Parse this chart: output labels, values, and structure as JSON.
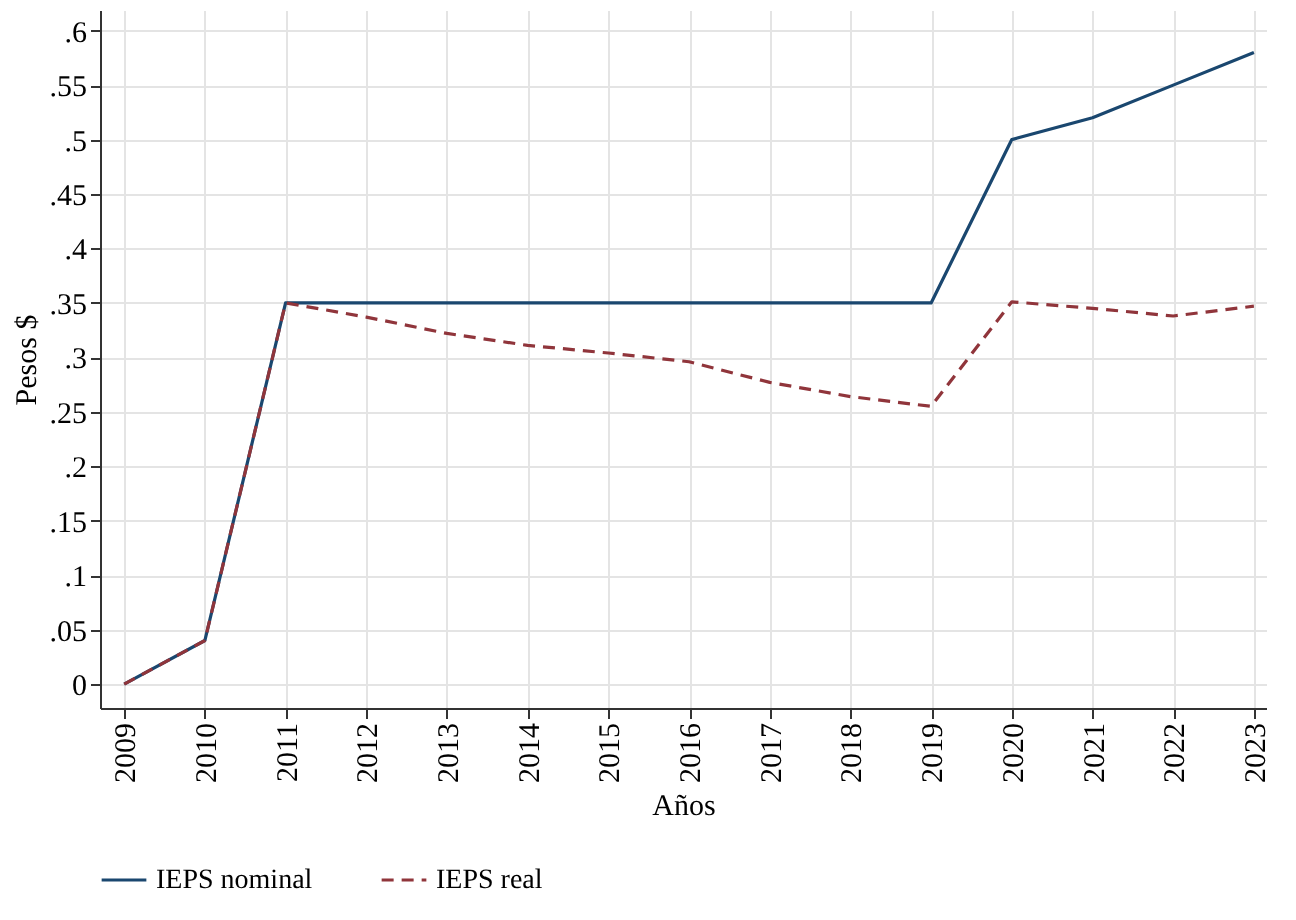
{
  "chart_data": {
    "type": "line",
    "xlabel": "Años",
    "ylabel": "Pesos $",
    "categories": [
      "2009",
      "2010",
      "2011",
      "2012",
      "2013",
      "2014",
      "2015",
      "2016",
      "2017",
      "2018",
      "2019",
      "2020",
      "2021",
      "2022",
      "2023"
    ],
    "series": [
      {
        "name": "IEPS nominal",
        "color": "#1a476f",
        "line_style": "solid",
        "values": [
          0,
          0.04,
          0.35,
          0.35,
          0.35,
          0.35,
          0.35,
          0.35,
          0.35,
          0.35,
          0.35,
          0.5,
          0.52,
          0.55,
          0.58
        ]
      },
      {
        "name": "IEPS real",
        "color": "#90353b",
        "line_style": "dashed",
        "values": [
          0,
          0.04,
          0.35,
          0.337,
          0.322,
          0.311,
          0.304,
          0.296,
          0.277,
          0.264,
          0.255,
          0.351,
          0.345,
          0.338,
          0.347
        ]
      }
    ],
    "ylim": [
      -0.022,
      0.619
    ],
    "yticks": [
      {
        "value": 0,
        "label": "0"
      },
      {
        "value": 0.05,
        "label": ".05"
      },
      {
        "value": 0.1,
        "label": ".1"
      },
      {
        "value": 0.15,
        "label": ".15"
      },
      {
        "value": 0.2,
        "label": ".2"
      },
      {
        "value": 0.25,
        "label": ".25"
      },
      {
        "value": 0.3,
        "label": ".3"
      },
      {
        "value": 0.35,
        "label": ".35"
      },
      {
        "value": 0.4,
        "label": ".4"
      },
      {
        "value": 0.45,
        "label": ".45"
      },
      {
        "value": 0.5,
        "label": ".5"
      },
      {
        "value": 0.55,
        "label": ".55"
      },
      {
        "value": 0.6,
        "label": ".6"
      }
    ],
    "grid": true,
    "legend": "bottom",
    "marker": "none"
  }
}
